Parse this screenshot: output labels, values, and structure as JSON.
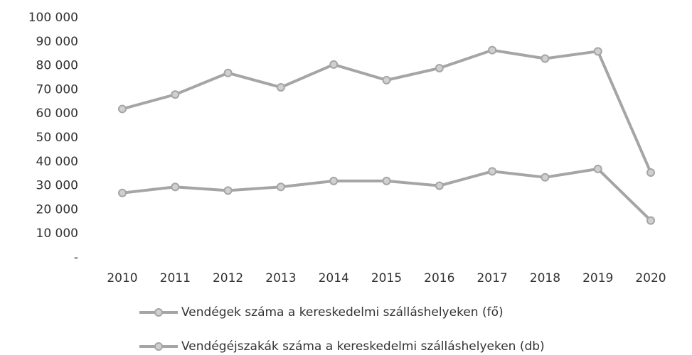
{
  "chart_data": {
    "type": "line",
    "categories": [
      "2010",
      "2011",
      "2012",
      "2013",
      "2014",
      "2015",
      "2016",
      "2017",
      "2018",
      "2019",
      "2020"
    ],
    "series": [
      {
        "name": "Vendégek száma a kereskedelmi szálláshelyeken (fő)",
        "color": "#a5a5a5",
        "values": [
          62000,
          68000,
          77000,
          71000,
          80500,
          74000,
          79000,
          86500,
          83000,
          86000,
          35500
        ]
      },
      {
        "name": "Vendégéjszakák száma a kereskedelmi szálláshelyeken (db)",
        "color": "#a5a5a5",
        "values": [
          27000,
          29500,
          28000,
          29500,
          32000,
          32000,
          30000,
          36000,
          33500,
          37000,
          15500
        ]
      }
    ],
    "ylim": [
      0,
      100000
    ],
    "yticks": [
      {
        "value": 0,
        "label": "-"
      },
      {
        "value": 10000,
        "label": "10 000"
      },
      {
        "value": 20000,
        "label": "20 000"
      },
      {
        "value": 30000,
        "label": "30 000"
      },
      {
        "value": 40000,
        "label": "40 000"
      },
      {
        "value": 50000,
        "label": "50 000"
      },
      {
        "value": 60000,
        "label": "60 000"
      },
      {
        "value": 70000,
        "label": "70 000"
      },
      {
        "value": 80000,
        "label": "80 000"
      },
      {
        "value": 90000,
        "label": "90 000"
      },
      {
        "value": 100000,
        "label": "100 000"
      }
    ],
    "grid": false,
    "legend": "bottom"
  }
}
